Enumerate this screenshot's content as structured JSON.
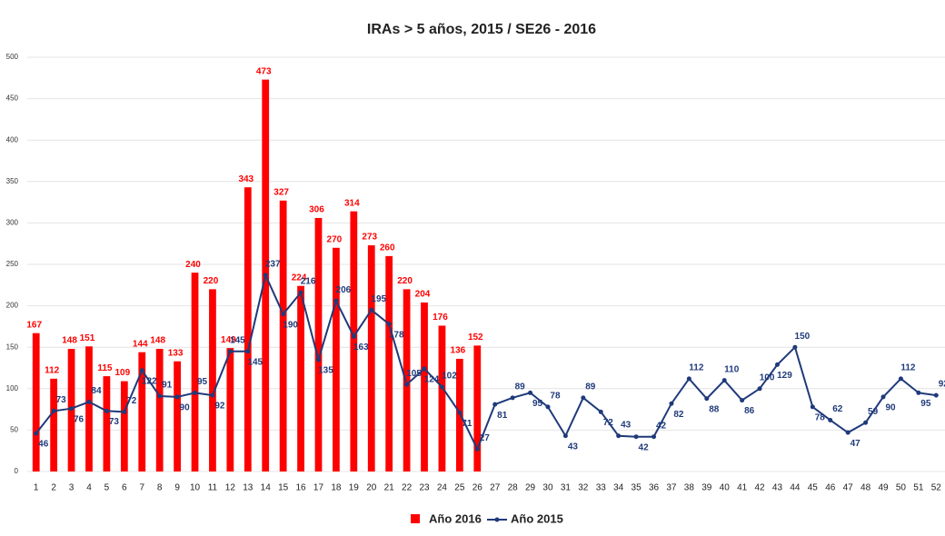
{
  "chart_data": {
    "type": "bar-line",
    "title": "IRAs > 5 años, 2015 / SE26 - 2016",
    "categories": [
      "1",
      "2",
      "3",
      "4",
      "5",
      "6",
      "7",
      "8",
      "9",
      "10",
      "11",
      "12",
      "13",
      "14",
      "15",
      "16",
      "17",
      "18",
      "19",
      "20",
      "21",
      "22",
      "23",
      "24",
      "25",
      "26",
      "27",
      "28",
      "29",
      "30",
      "31",
      "32",
      "33",
      "34",
      "35",
      "36",
      "37",
      "38",
      "39",
      "40",
      "41",
      "42",
      "43",
      "44",
      "45",
      "46",
      "47",
      "48",
      "49",
      "50",
      "51",
      "52"
    ],
    "series": [
      {
        "name": "Año 2016",
        "color": "#ff0000",
        "kind": "bar",
        "values": [
          167,
          112,
          148,
          151,
          115,
          109,
          144,
          148,
          133,
          240,
          220,
          149,
          343,
          473,
          327,
          224,
          306,
          270,
          314,
          273,
          260,
          220,
          204,
          176,
          136,
          152,
          null,
          null,
          null,
          null,
          null,
          null,
          null,
          null,
          null,
          null,
          null,
          null,
          null,
          null,
          null,
          null,
          null,
          null,
          null,
          null,
          null,
          null,
          null,
          null,
          null,
          null
        ]
      },
      {
        "name": "Año 2015",
        "color": "#1f3a7a",
        "kind": "line",
        "values": [
          46,
          73,
          76,
          84,
          73,
          72,
          122,
          91,
          90,
          95,
          92,
          145,
          145,
          237,
          190,
          216,
          135,
          206,
          163,
          195,
          178,
          105,
          124,
          102,
          71,
          27,
          81,
          89,
          95,
          78,
          43,
          89,
          72,
          43,
          42,
          42,
          82,
          112,
          88,
          110,
          86,
          100,
          129,
          150,
          78,
          62,
          47,
          59,
          90,
          112,
          95,
          92
        ]
      }
    ],
    "ylim": [
      0,
      500
    ],
    "yticks": [
      0,
      50,
      100,
      150,
      200,
      250,
      300,
      350,
      400,
      450,
      500
    ],
    "grid": true,
    "legend": "bottom"
  }
}
